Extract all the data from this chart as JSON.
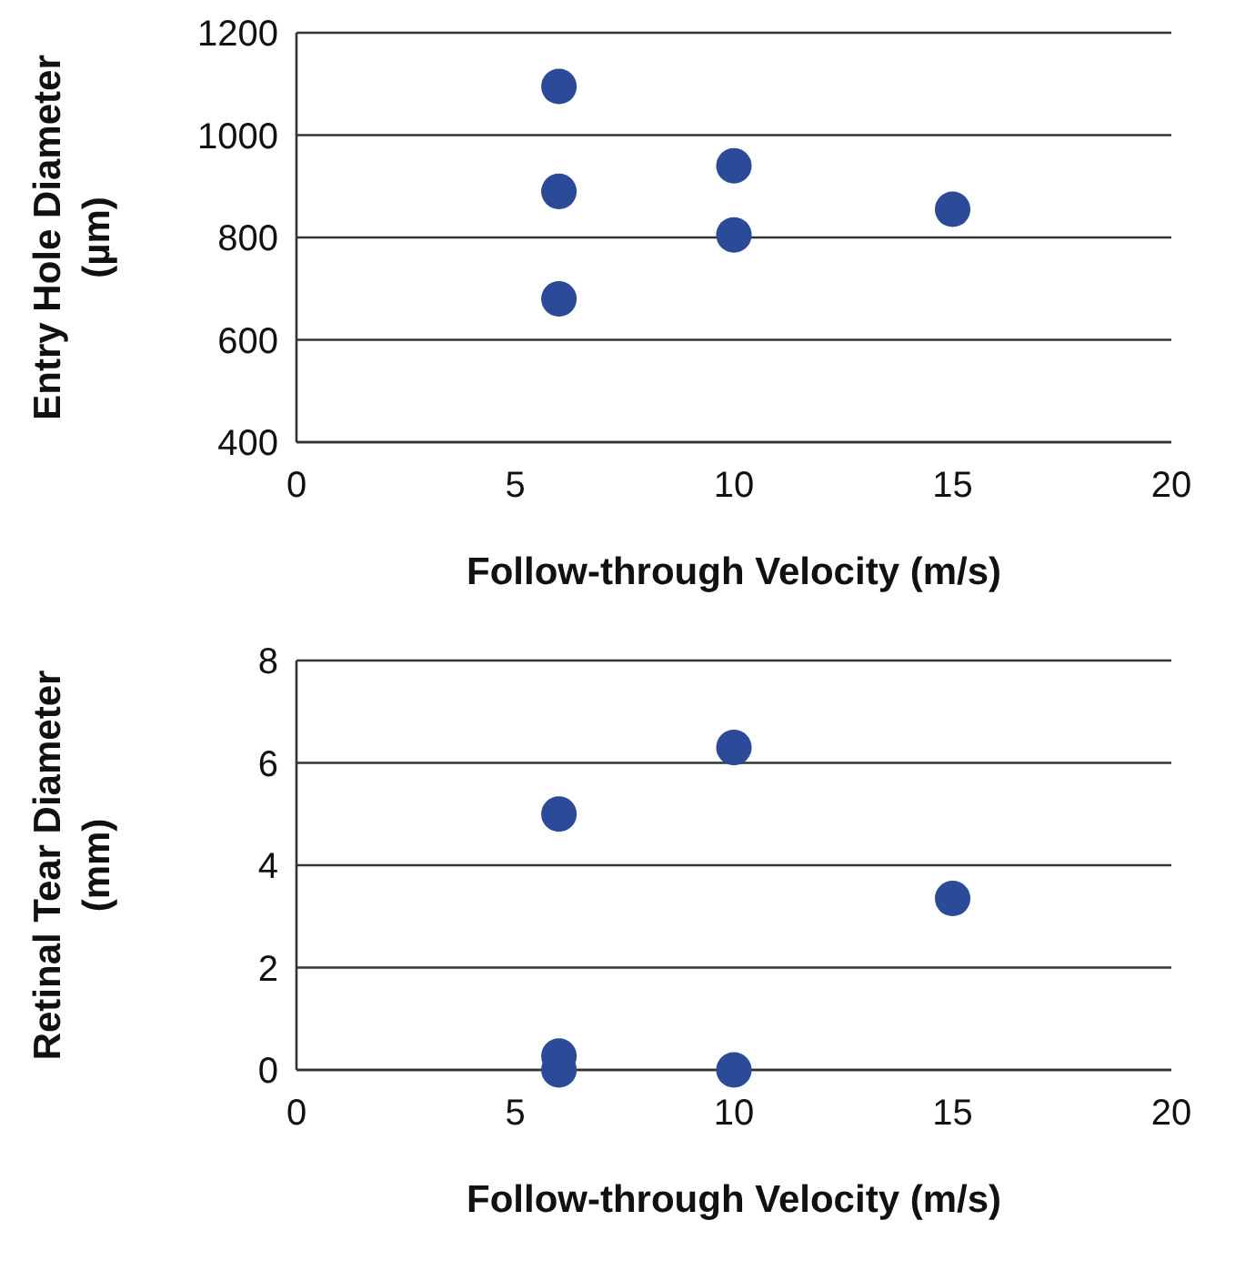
{
  "chart_data": [
    {
      "type": "scatter",
      "xlabel": "Follow-through Velocity (m/s)",
      "ylabel": "Entry Hole Diameter (µm)",
      "xlim": [
        0,
        20
      ],
      "xticks": [
        0,
        5,
        10,
        15,
        20
      ],
      "ylim": [
        400,
        1200
      ],
      "yticks": [
        400,
        600,
        800,
        1000,
        1200
      ],
      "grid": "y",
      "marker": "circle",
      "series": [
        {
          "color": "#2b4a97",
          "x": [
            6,
            6,
            6,
            10,
            10,
            15
          ],
          "values": [
            1095,
            890,
            680,
            940,
            805,
            855
          ]
        }
      ]
    },
    {
      "type": "scatter",
      "xlabel": "Follow-through Velocity (m/s)",
      "ylabel": "Retinal Tear Diameter (mm)",
      "xlim": [
        0,
        20
      ],
      "xticks": [
        0,
        5,
        10,
        15,
        20
      ],
      "ylim": [
        0,
        8
      ],
      "yticks": [
        0,
        2,
        4,
        6,
        8
      ],
      "grid": "y",
      "marker": "circle",
      "series": [
        {
          "color": "#2b4a97",
          "x": [
            6,
            6,
            6,
            10,
            10,
            15
          ],
          "values": [
            5,
            0.27,
            0,
            6.3,
            0,
            3.35
          ]
        }
      ]
    }
  ]
}
